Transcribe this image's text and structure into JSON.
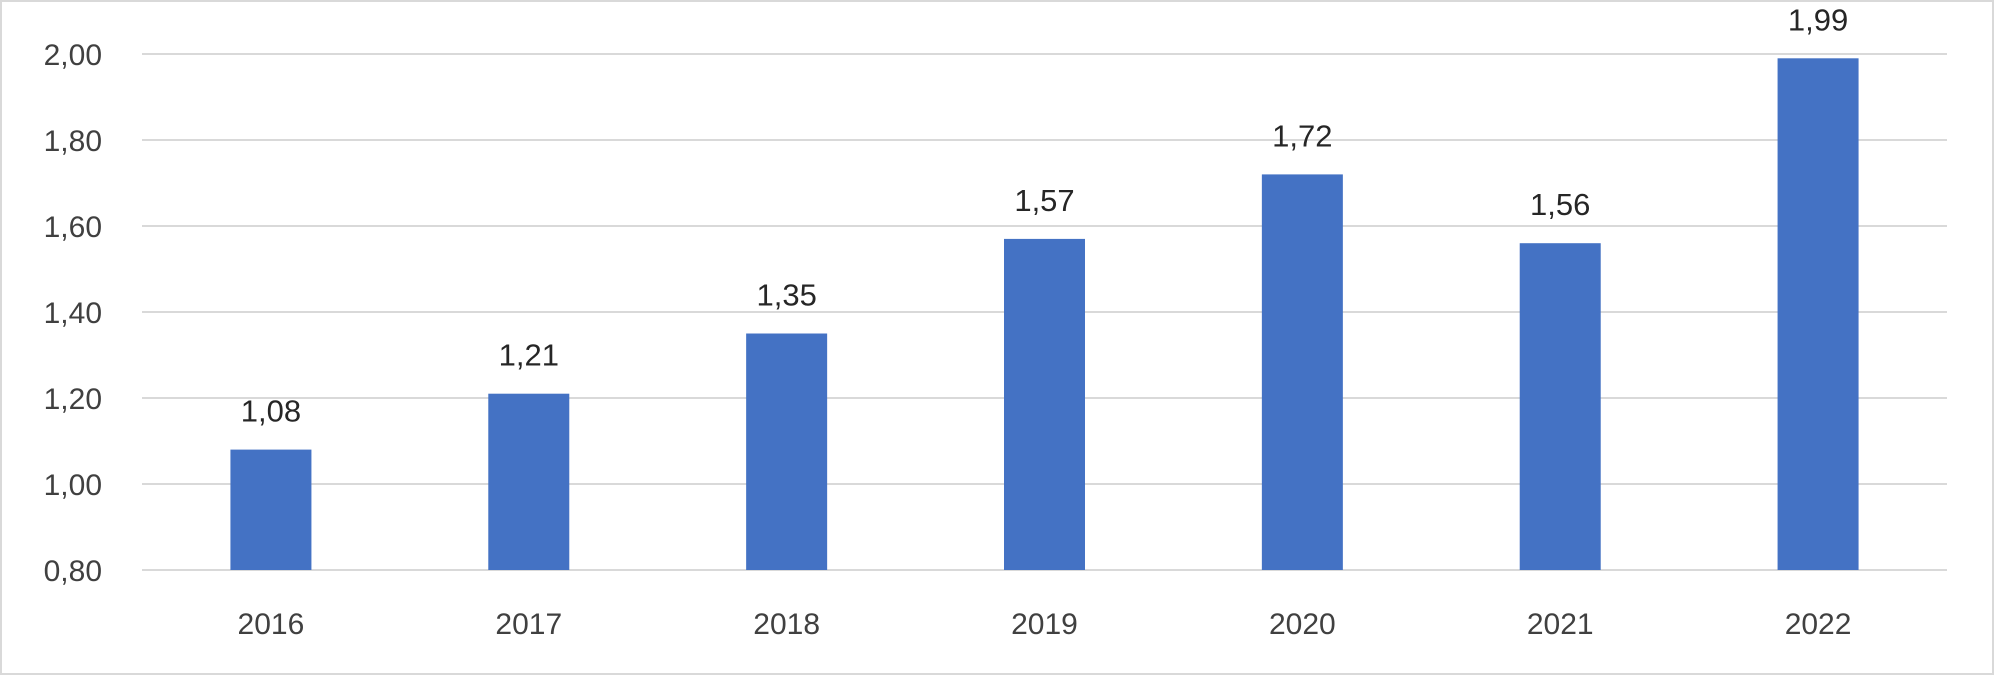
{
  "chart_data": {
    "type": "bar",
    "title": "",
    "xlabel": "",
    "ylabel": "",
    "categories": [
      "2016",
      "2017",
      "2018",
      "2019",
      "2020",
      "2021",
      "2022"
    ],
    "values": [
      1.08,
      1.21,
      1.35,
      1.57,
      1.72,
      1.56,
      1.99
    ],
    "data_labels": [
      "1,08",
      "1,21",
      "1,35",
      "1,57",
      "1,72",
      "1,56",
      "1,99"
    ],
    "ylim": [
      0.8,
      2.0
    ],
    "y_ticks": [
      0.8,
      1.0,
      1.2,
      1.4,
      1.6,
      1.8,
      2.0
    ],
    "y_tick_labels": [
      "0,80",
      "1,00",
      "1,20",
      "1,40",
      "1,60",
      "1,80",
      "2,00"
    ],
    "grid": true,
    "legend": "none",
    "bar_color": "#4472c4"
  }
}
